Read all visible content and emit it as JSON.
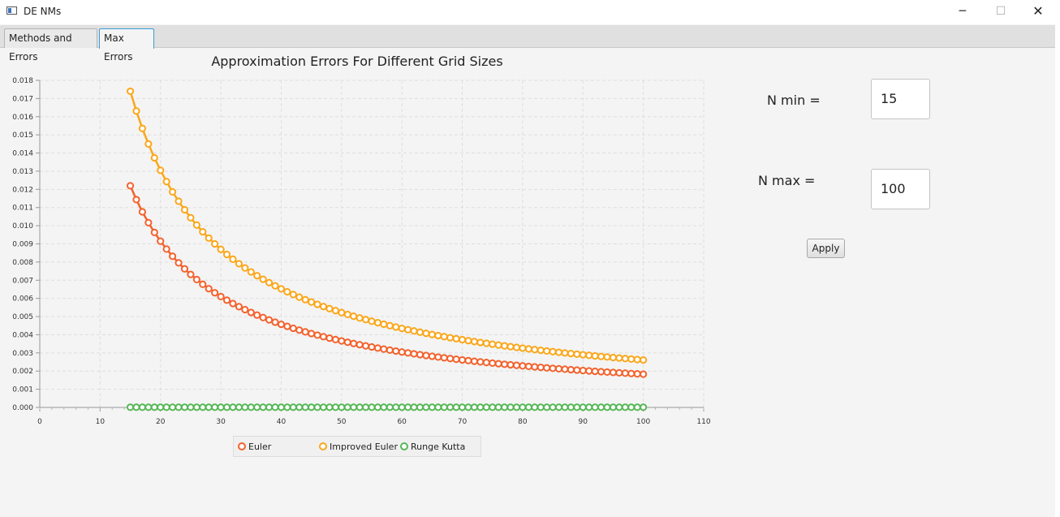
{
  "window": {
    "title": "DE NMs",
    "minimize_glyph": "─",
    "maximize_glyph": "☐",
    "close_glyph": "✕"
  },
  "tabs": [
    {
      "label": "Methods and Errors",
      "selected": false
    },
    {
      "label": "Max Errors",
      "selected": true
    }
  ],
  "form": {
    "nmin_label": "N min =",
    "nmin_value": "15",
    "nmax_label": "N max =",
    "nmax_value": "100",
    "apply_label": "Apply"
  },
  "chart_data": {
    "type": "line",
    "title": "Approximation Errors For Different Grid Sizes",
    "xlabel": "",
    "ylabel": "",
    "xlim": [
      0,
      110
    ],
    "ylim": [
      0,
      0.018
    ],
    "x_ticks": [
      "0",
      "10",
      "20",
      "30",
      "40",
      "50",
      "60",
      "70",
      "80",
      "90",
      "100",
      "110"
    ],
    "y_ticks": [
      "0.000",
      "0.001",
      "0.002",
      "0.003",
      "0.004",
      "0.005",
      "0.006",
      "0.007",
      "0.008",
      "0.009",
      "0.010",
      "0.011",
      "0.012",
      "0.013",
      "0.014",
      "0.015",
      "0.016",
      "0.017",
      "0.018"
    ],
    "grid": true,
    "legend_position": "bottom",
    "series": [
      {
        "name": "Euler",
        "color": "#f3622d",
        "x_start": 15,
        "x_end": 100,
        "x_step": 1,
        "model": "reciprocal",
        "k": 0.183
      },
      {
        "name": "Improved Euler",
        "color": "#fba71b",
        "x_start": 15,
        "x_end": 100,
        "x_step": 1,
        "model": "reciprocal",
        "k": 0.261
      },
      {
        "name": "Runge Kutta",
        "color": "#57b757",
        "x_start": 15,
        "x_end": 100,
        "x_step": 1,
        "model": "constant",
        "value": 1e-05
      }
    ]
  }
}
